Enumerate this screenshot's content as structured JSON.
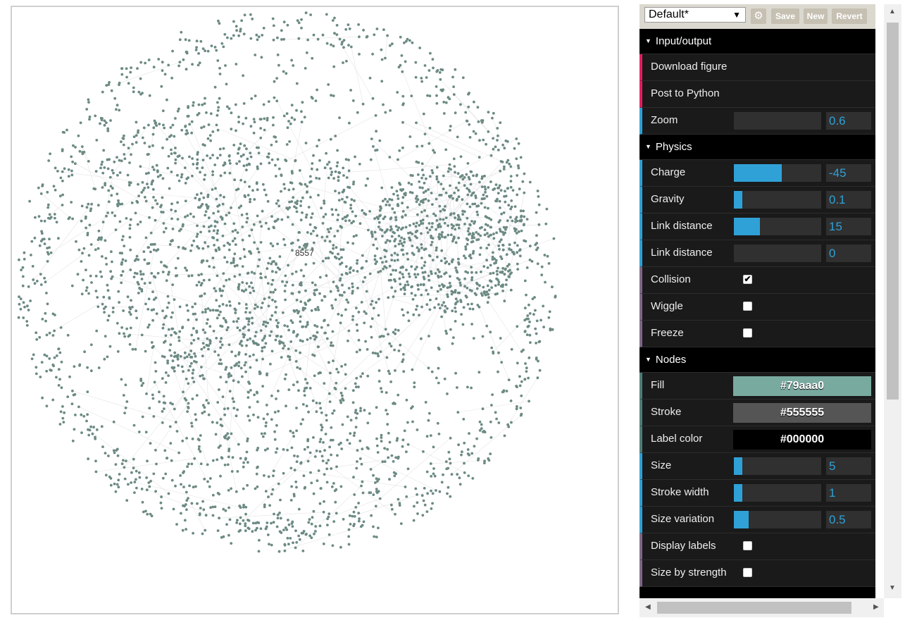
{
  "canvas": {
    "center_label": "8557",
    "node_color": "#6c8a83",
    "link_color": "#d9d9d9"
  },
  "presets": {
    "selected": "Default*",
    "gear_icon": "gear-icon",
    "save_label": "Save",
    "new_label": "New",
    "revert_label": "Revert"
  },
  "folders": {
    "io": {
      "title": "Input/output",
      "download": "Download figure",
      "post": "Post to Python",
      "zoom_label": "Zoom",
      "zoom_value": "0.6"
    },
    "physics": {
      "title": "Physics",
      "charge_label": "Charge",
      "charge_value": "-45",
      "charge_fill": 0.55,
      "gravity_label": "Gravity",
      "gravity_value": "0.1",
      "gravity_fill": 0.1,
      "link_distance_label": "Link distance",
      "link_distance_value": "15",
      "link_distance_fill": 0.3,
      "link_distance2_label": "Link distance",
      "link_distance2_value": "0",
      "collision_label": "Collision",
      "collision_checked": true,
      "wiggle_label": "Wiggle",
      "wiggle_checked": false,
      "freeze_label": "Freeze",
      "freeze_checked": false
    },
    "nodes": {
      "title": "Nodes",
      "fill_label": "Fill",
      "fill_value": "#79aaa0",
      "stroke_label": "Stroke",
      "stroke_value": "#555555",
      "label_color_label": "Label color",
      "label_color_value": "#000000",
      "size_label": "Size",
      "size_value": "5",
      "size_fill": 0.1,
      "stroke_width_label": "Stroke width",
      "stroke_width_value": "1",
      "stroke_width_fill": 0.1,
      "size_variation_label": "Size variation",
      "size_variation_value": "0.5",
      "size_variation_fill": 0.17,
      "display_labels_label": "Display labels",
      "display_labels_checked": false,
      "size_by_strength_label": "Size by strength",
      "size_by_strength_checked": false
    }
  }
}
